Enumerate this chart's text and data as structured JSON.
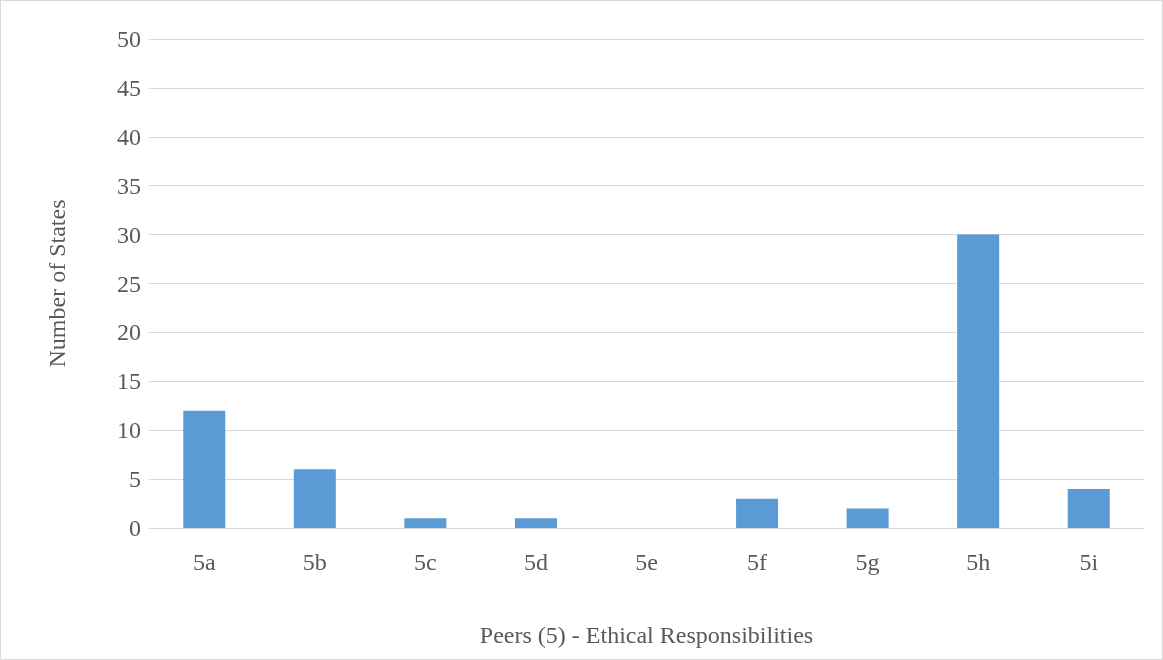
{
  "chart_data": {
    "type": "bar",
    "xlabel": "Peers (5) - Ethical Responsibilities",
    "ylabel": "Number of States",
    "categories": [
      "5a",
      "5b",
      "5c",
      "5d",
      "5e",
      "5f",
      "5g",
      "5h",
      "5i"
    ],
    "values": [
      12,
      6,
      1,
      1,
      0,
      3,
      2,
      30,
      4
    ],
    "color": "#5b9bd5",
    "ylim": [
      0,
      50
    ],
    "yticks": [
      0,
      5,
      10,
      15,
      20,
      25,
      30,
      35,
      40,
      45,
      50
    ],
    "grid": "y"
  }
}
